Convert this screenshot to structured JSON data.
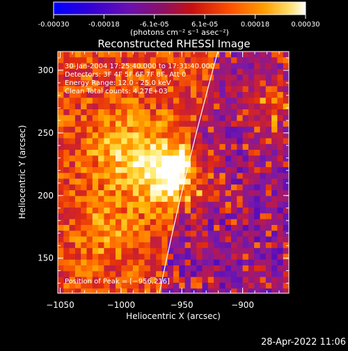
{
  "chart_data": {
    "type": "heatmap",
    "title": "Reconstructed RHESSI Image",
    "colorbar": {
      "tick_labels": [
        "-0.00030",
        "-0.00018",
        "-6.1e-05",
        "6.1e-05",
        "0.00018",
        "0.00030"
      ],
      "range": [
        -0.0003,
        0.0003
      ],
      "unit_label": "(photons cm⁻² s⁻¹ asec⁻²)",
      "colormap": [
        "#0000ff",
        "#3a00c8",
        "#7a1aa8",
        "#b0185a",
        "#e02a10",
        "#ff6a00",
        "#ffb000",
        "#ffe860",
        "#ffffff"
      ]
    },
    "xlabel": "Heliocentric X (arcsec)",
    "ylabel": "Heliocentric Y (arcsec)",
    "xlim": [
      -1052,
      -862
    ],
    "ylim": [
      122,
      315
    ],
    "x_ticks": [
      {
        "value": -1050,
        "label": "−1050"
      },
      {
        "value": -1000,
        "label": "−1000"
      },
      {
        "value": -950,
        "label": "−950"
      },
      {
        "value": -900,
        "label": "−900"
      }
    ],
    "y_ticks": [
      {
        "value": 150,
        "label": "150"
      },
      {
        "value": 200,
        "label": "200"
      },
      {
        "value": 250,
        "label": "250"
      },
      {
        "value": 300,
        "label": "300"
      }
    ],
    "annotations": [
      "30-Jan-2004 17:25:40.000 to 17:31:40.000",
      "Detectors: 3F 4F 5F 6F 7F 8F, Att 0",
      "Energy Range: 12.0 - 25.0 keV",
      "Clean     Total counts: 4.27E+03"
    ],
    "peak_label": "Position of Peak = [−956,216]",
    "peak": {
      "x": -956,
      "y": 216
    },
    "grid": false
  },
  "footer_timestamp": "28-Apr-2022 11:06"
}
